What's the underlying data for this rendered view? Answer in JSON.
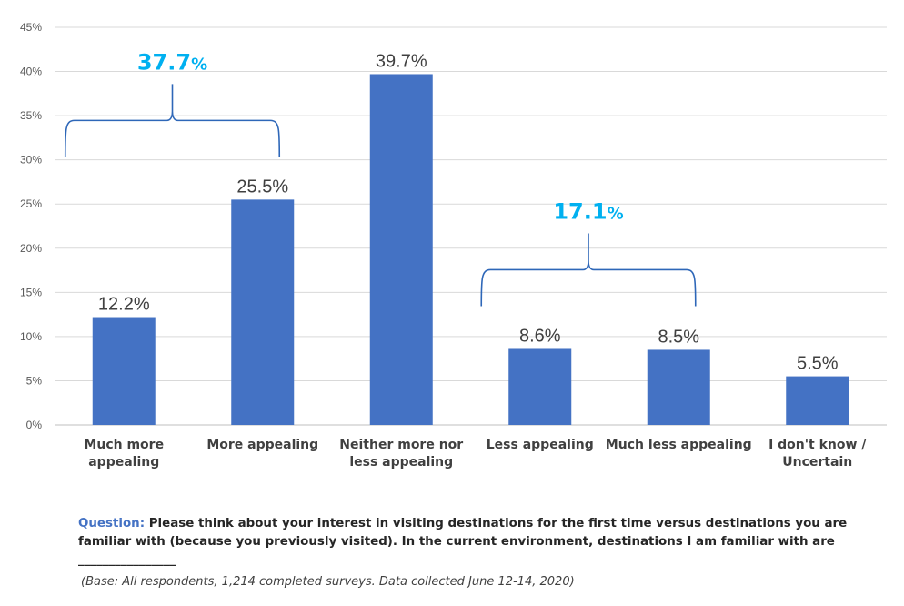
{
  "chart_data": {
    "type": "bar",
    "title": "",
    "xlabel": "",
    "ylabel": "",
    "ylim": [
      0,
      45
    ],
    "yticks": [
      "0%",
      "5%",
      "10%",
      "15%",
      "20%",
      "25%",
      "30%",
      "35%",
      "40%",
      "45%"
    ],
    "grid": true,
    "color": "#4472C4",
    "categories": [
      [
        "Much more",
        "appealing"
      ],
      [
        "More appealing"
      ],
      [
        "Neither more nor",
        "less appealing"
      ],
      [
        "Less appealing"
      ],
      [
        "Much less appealing"
      ],
      [
        "I don't know /",
        "Uncertain"
      ]
    ],
    "values": [
      12.2,
      25.5,
      39.7,
      8.6,
      8.5,
      5.5
    ],
    "data_labels": [
      "12.2%",
      "25.5%",
      "39.7%",
      "8.6%",
      "8.5%",
      "5.5%"
    ],
    "annotations": [
      {
        "span": [
          0,
          1
        ],
        "value": "37.7",
        "unit": "%",
        "color": "#00B0F0"
      },
      {
        "span": [
          3,
          4
        ],
        "value": "17.1",
        "unit": "%",
        "color": "#00B0F0"
      }
    ]
  },
  "footer": {
    "question_label": "Question:",
    "question_text": " Please think about your interest in visiting destinations for the first time versus destinations you are familiar with (because you previously visited). In the current environment, destinations  I am familiar with are ________________",
    "base_note": "(Base: All respondents, 1,214 completed surveys. Data collected June 12-14, 2020)"
  }
}
